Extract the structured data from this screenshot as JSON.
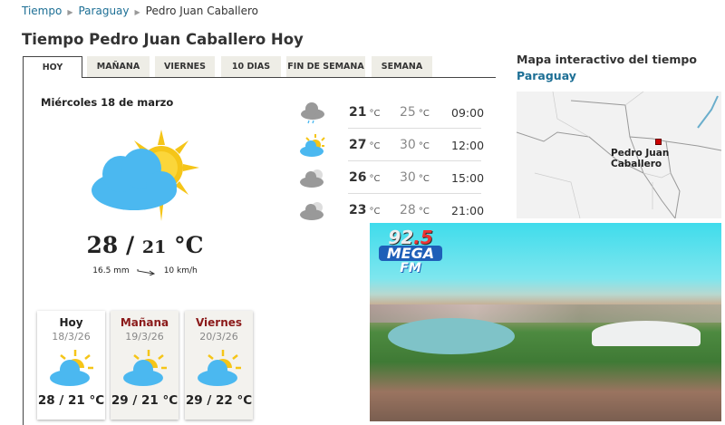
{
  "breadcrumb": [
    "Tiempo",
    "Paraguay",
    "Pedro Juan Caballero"
  ],
  "title": "Tiempo Pedro Juan Caballero Hoy",
  "tabs": [
    {
      "label": "HOY",
      "active": true
    },
    {
      "label": "MAÑANA"
    },
    {
      "label": "VIERNES"
    },
    {
      "label": "10 DIAS"
    },
    {
      "label": "FIN DE SEMANA"
    },
    {
      "label": "SEMANA"
    }
  ],
  "today": {
    "date": "Miércoles 18 de marzo",
    "icon": "sun-cloud-icon",
    "max": "28",
    "min": "21",
    "unit": "°C",
    "sep": "/",
    "precip": "16.5 mm",
    "wind": "10 km/h"
  },
  "hourly": [
    {
      "icon": "rain-cloud-icon",
      "temp": "21",
      "feels": "25",
      "unit": "°C",
      "time": "09:00"
    },
    {
      "icon": "sun-cloud-icon",
      "temp": "27",
      "feels": "30",
      "unit": "°C",
      "time": "12:00"
    },
    {
      "icon": "cloud-icon",
      "temp": "26",
      "feels": "30",
      "unit": "°C",
      "time": "15:00"
    },
    {
      "icon": "cloud-icon",
      "temp": "23",
      "feels": "28",
      "unit": "°C",
      "time": "21:00"
    }
  ],
  "days": [
    {
      "name": "Hoy",
      "date": "18/3/26",
      "temps": "28 / 21 °C",
      "icon": "sun-cloud-icon"
    },
    {
      "name": "Mañana",
      "date": "19/3/26",
      "temps": "29 / 21 °C",
      "icon": "sun-cloud-icon"
    },
    {
      "name": "Viernes",
      "date": "20/3/26",
      "temps": "29 / 22 °C",
      "icon": "sun-cloud-icon"
    }
  ],
  "map": {
    "title": "Mapa interactivo del tiempo",
    "subtitle": "Paraguay",
    "city": "Pedro Juan Caballero"
  },
  "ad": {
    "logo": "92.5 MEGA FM"
  },
  "colors": {
    "link": "#1d6f95",
    "day_red": "#8b1a1a",
    "cloud_blue": "#4bb8f0",
    "sun": "#f5c518"
  }
}
